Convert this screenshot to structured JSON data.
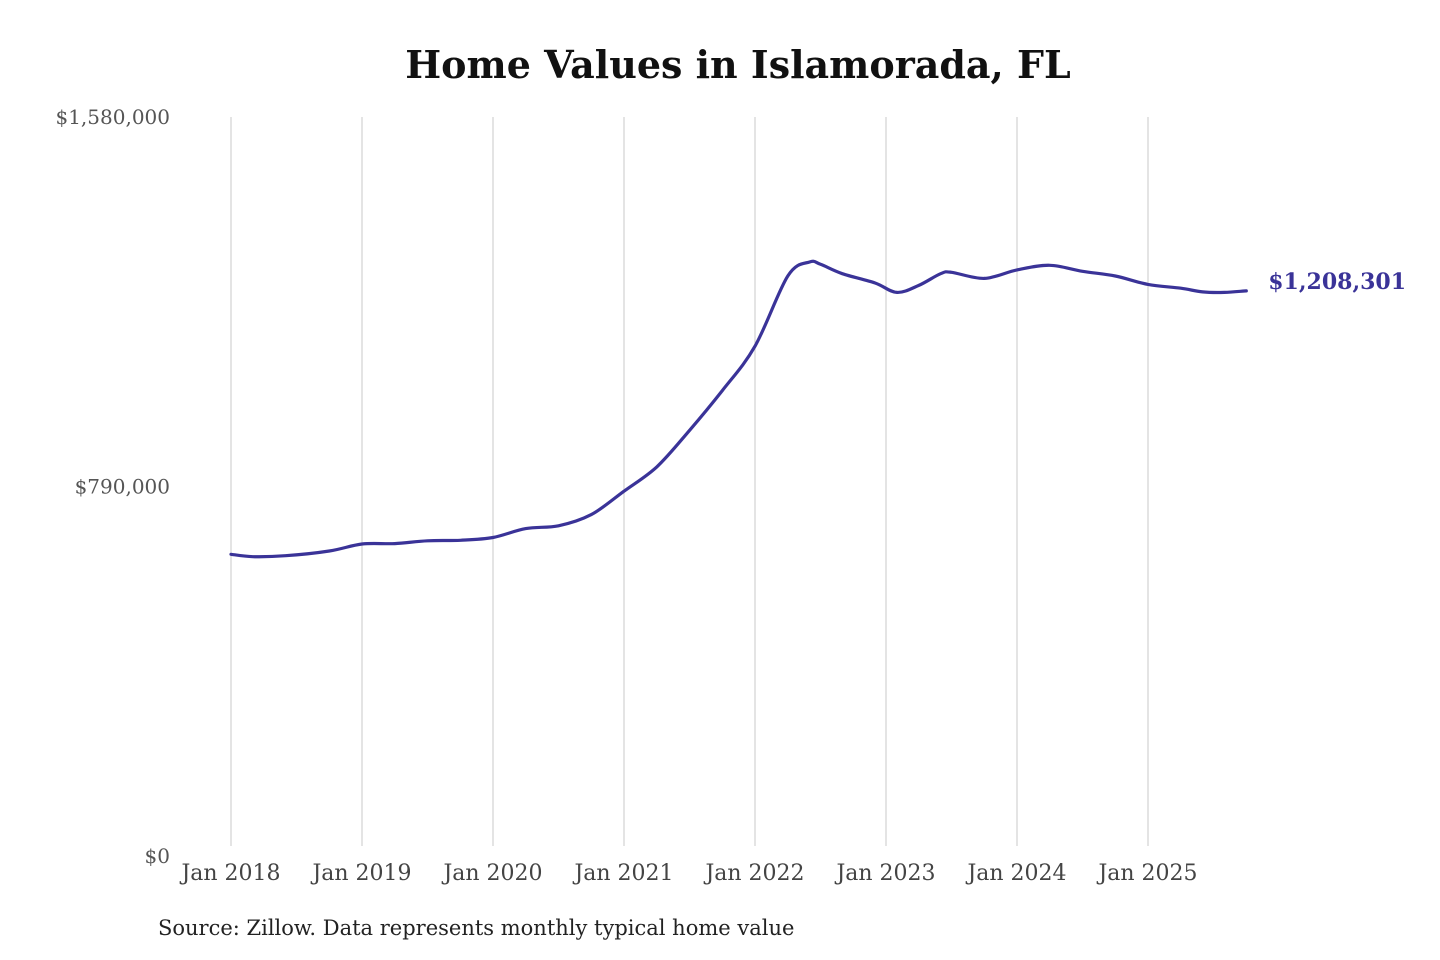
{
  "chart_data": {
    "type": "line",
    "title": "Home Values in Islamorada, FL",
    "source": "Source: Zillow. Data represents monthly typical home value",
    "ylim": [
      0,
      1580000
    ],
    "ytick_labels": [
      {
        "value": 0,
        "label": "$0"
      },
      {
        "value": 790000,
        "label": "$790,000"
      },
      {
        "value": 1580000,
        "label": "$1,580,000"
      }
    ],
    "xtick_labels": [
      "Jan 2018",
      "Jan 2019",
      "Jan 2020",
      "Jan 2021",
      "Jan 2022",
      "Jan 2023",
      "Jan 2024",
      "Jan 2025"
    ],
    "grid": "vertical",
    "line_color": "#3a3398",
    "end_label": "$1,208,301",
    "series": [
      {
        "points": [
          {
            "x": "2018-01",
            "y": 645000
          },
          {
            "x": "2018-03",
            "y": 640000
          },
          {
            "x": "2018-06",
            "y": 642000
          },
          {
            "x": "2018-10",
            "y": 652000
          },
          {
            "x": "2019-01",
            "y": 667000
          },
          {
            "x": "2019-04",
            "y": 668000
          },
          {
            "x": "2019-07",
            "y": 674000
          },
          {
            "x": "2019-10",
            "y": 675000
          },
          {
            "x": "2020-01",
            "y": 681000
          },
          {
            "x": "2020-04",
            "y": 700000
          },
          {
            "x": "2020-07",
            "y": 706000
          },
          {
            "x": "2020-10",
            "y": 730000
          },
          {
            "x": "2021-01",
            "y": 780000
          },
          {
            "x": "2021-04",
            "y": 832000
          },
          {
            "x": "2021-07",
            "y": 910000
          },
          {
            "x": "2021-10",
            "y": 995000
          },
          {
            "x": "2022-01",
            "y": 1090000
          },
          {
            "x": "2022-04",
            "y": 1240000
          },
          {
            "x": "2022-06",
            "y": 1270000
          },
          {
            "x": "2022-07",
            "y": 1265000
          },
          {
            "x": "2022-09",
            "y": 1245000
          },
          {
            "x": "2022-12",
            "y": 1225000
          },
          {
            "x": "2023-02",
            "y": 1205000
          },
          {
            "x": "2023-04",
            "y": 1220000
          },
          {
            "x": "2023-06",
            "y": 1245000
          },
          {
            "x": "2023-07",
            "y": 1248000
          },
          {
            "x": "2023-10",
            "y": 1235000
          },
          {
            "x": "2024-01",
            "y": 1253000
          },
          {
            "x": "2024-04",
            "y": 1263000
          },
          {
            "x": "2024-07",
            "y": 1250000
          },
          {
            "x": "2024-10",
            "y": 1240000
          },
          {
            "x": "2025-01",
            "y": 1222000
          },
          {
            "x": "2025-04",
            "y": 1214000
          },
          {
            "x": "2025-06",
            "y": 1206000
          },
          {
            "x": "2025-08",
            "y": 1205000
          },
          {
            "x": "2025-10",
            "y": 1208301
          }
        ]
      }
    ]
  }
}
